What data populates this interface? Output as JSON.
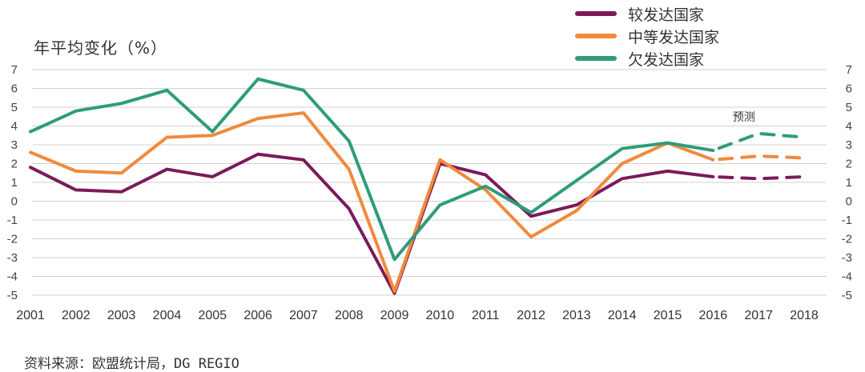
{
  "chart_data": {
    "type": "line",
    "title": "",
    "ylabel": "年平均变化（%）",
    "xlabel": "",
    "ylim": [
      -5,
      7
    ],
    "yticks": [
      7,
      6,
      5,
      4,
      3,
      2,
      1,
      0,
      -1,
      -2,
      -3,
      -4,
      -5
    ],
    "x": [
      "2001",
      "2002",
      "2003",
      "2004",
      "2005",
      "2006",
      "2007",
      "2008",
      "2009",
      "2010",
      "2011",
      "2012",
      "2013",
      "2014",
      "2015",
      "2016",
      "2017",
      "2018"
    ],
    "forecast_from": "2016",
    "forecast_label": "预测",
    "grid": true,
    "legend_position": "top-right",
    "series": [
      {
        "name": "较发达国家",
        "color": "#7b1a5a",
        "values": [
          1.8,
          0.6,
          0.5,
          1.7,
          1.3,
          2.5,
          2.2,
          -0.4,
          -4.9,
          2.0,
          1.4,
          -0.8,
          -0.2,
          1.2,
          1.6,
          1.3,
          1.2,
          1.3
        ]
      },
      {
        "name": "中等发达国家",
        "color": "#f08a3c",
        "values": [
          2.6,
          1.6,
          1.5,
          3.4,
          3.5,
          4.4,
          4.7,
          1.7,
          -4.8,
          2.2,
          0.6,
          -1.9,
          -0.5,
          2.0,
          3.1,
          2.2,
          2.4,
          2.3
        ]
      },
      {
        "name": "欠发达国家",
        "color": "#2e9c7a",
        "values": [
          3.7,
          4.8,
          5.2,
          5.9,
          3.7,
          6.5,
          5.9,
          3.2,
          -3.1,
          -0.2,
          0.8,
          -0.6,
          1.1,
          2.8,
          3.1,
          2.7,
          3.6,
          3.4
        ]
      }
    ]
  },
  "source_text": "资料来源：欧盟统计局，DG REGIO"
}
